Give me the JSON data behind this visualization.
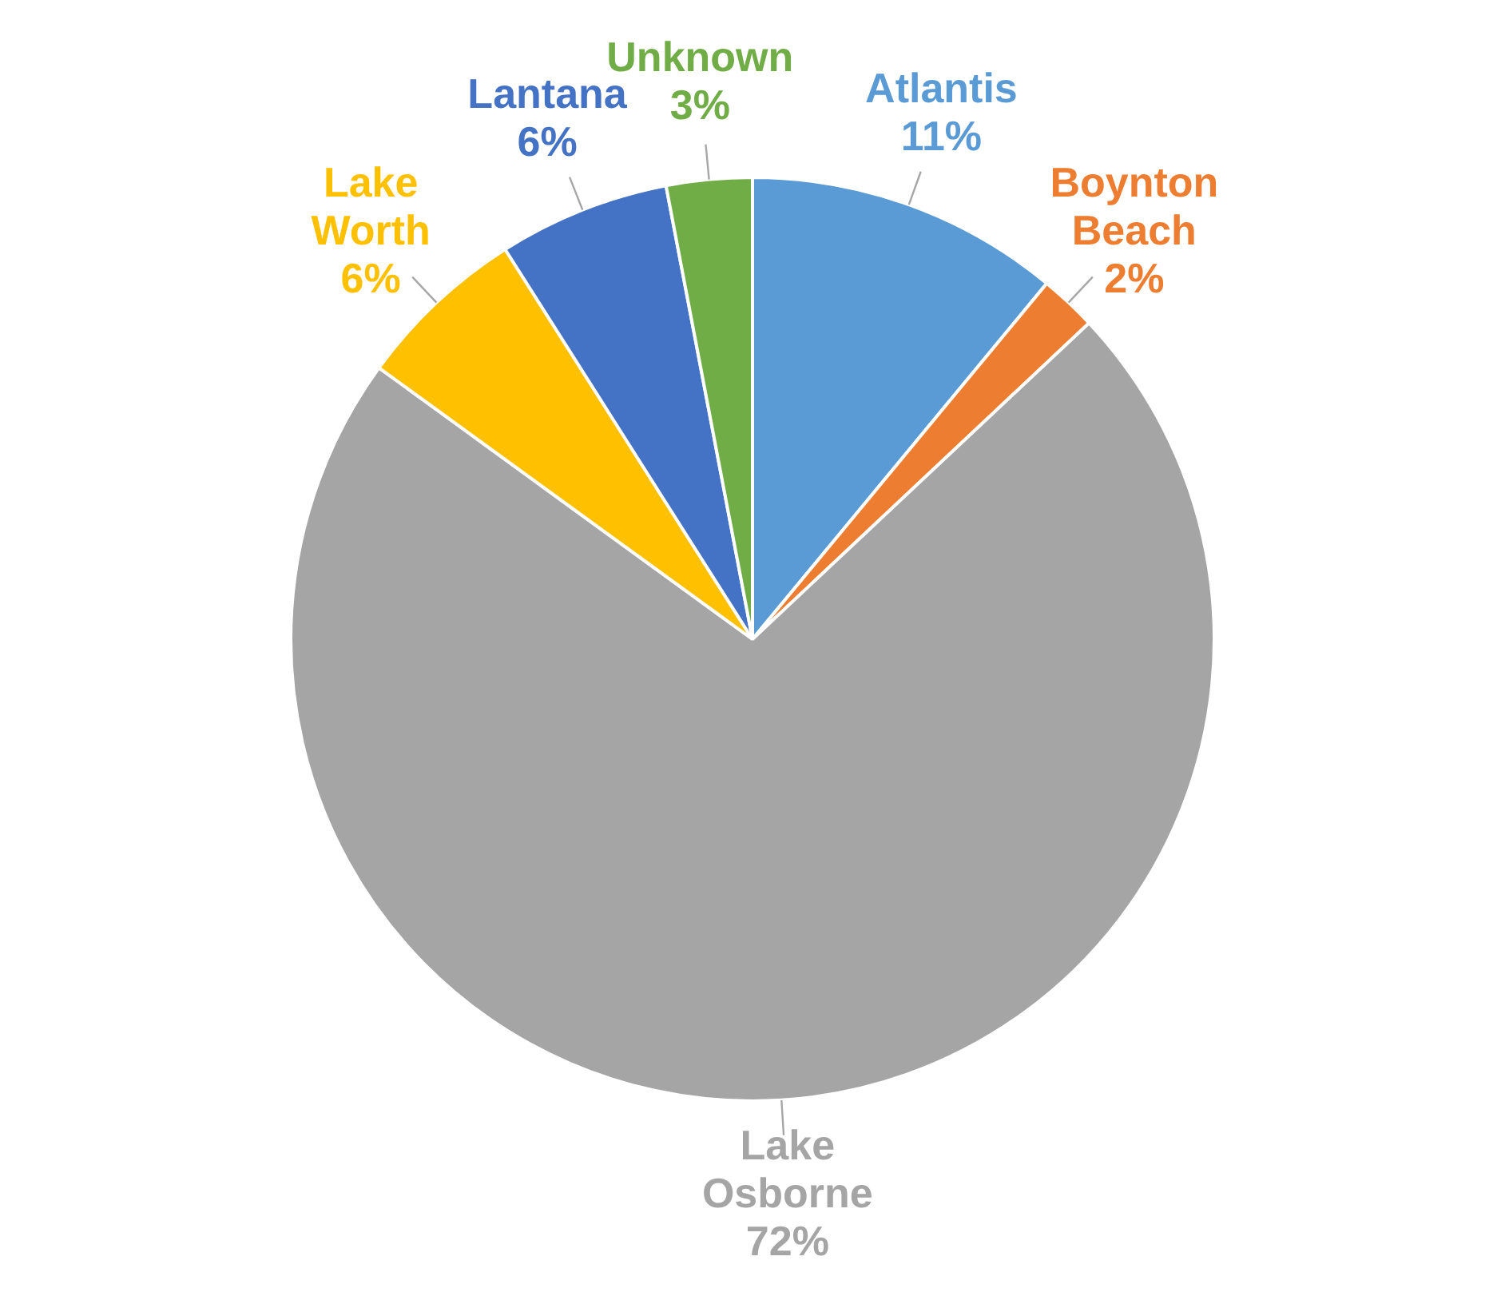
{
  "chart_data": {
    "type": "pie",
    "categories": [
      "Atlantis",
      "Boynton Beach",
      "Lake Osborne",
      "Lake Worth",
      "Lantana",
      "Unknown"
    ],
    "values": [
      11,
      2,
      72,
      6,
      6,
      3
    ],
    "value_labels": [
      "11%",
      "2%",
      "72%",
      "6%",
      "6%",
      "3%"
    ],
    "colors": [
      "#5b9bd5",
      "#ed7d31",
      "#a5a5a5",
      "#ffc000",
      "#4472c4",
      "#70ad47"
    ],
    "legend": false
  }
}
